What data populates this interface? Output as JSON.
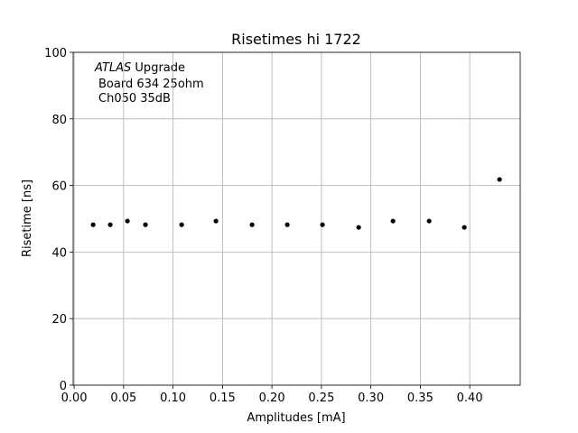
{
  "chart_data": {
    "type": "scatter",
    "title": "Risetimes hi 1722",
    "xlabel": "Amplitudes [mA]",
    "ylabel": "Risetime [ns]",
    "annotation": [
      {
        "italic": "ATLAS",
        "text": "Upgrade"
      },
      "Board 634 25ohm",
      "Ch050 35dB"
    ],
    "x": [
      0.0192,
      0.0365,
      0.0539,
      0.0721,
      0.1087,
      0.1434,
      0.1799,
      0.2155,
      0.2511,
      0.2877,
      0.3224,
      0.3589,
      0.3945,
      0.4301
    ],
    "values": [
      48.2,
      48.2,
      49.3,
      48.2,
      48.2,
      49.3,
      48.2,
      48.2,
      48.2,
      47.4,
      49.3,
      49.3,
      47.4,
      61.8
    ],
    "color": "#000000",
    "xlim": [
      -0.001,
      0.451
    ],
    "ylim": [
      0,
      100
    ],
    "xticks": [
      {
        "value": 0,
        "label": "0.00"
      },
      {
        "value": 0.05,
        "label": "0.05"
      },
      {
        "value": 0.1,
        "label": "0.10"
      },
      {
        "value": 0.15,
        "label": "0.15"
      },
      {
        "value": 0.2,
        "label": "0.20"
      },
      {
        "value": 0.25,
        "label": "0.25"
      },
      {
        "value": 0.3,
        "label": "0.30"
      },
      {
        "value": 0.35,
        "label": "0.35"
      },
      {
        "value": 0.4,
        "label": "0.40"
      }
    ],
    "yticks": [
      0,
      20,
      40,
      60,
      80,
      100
    ],
    "grid": true
  }
}
